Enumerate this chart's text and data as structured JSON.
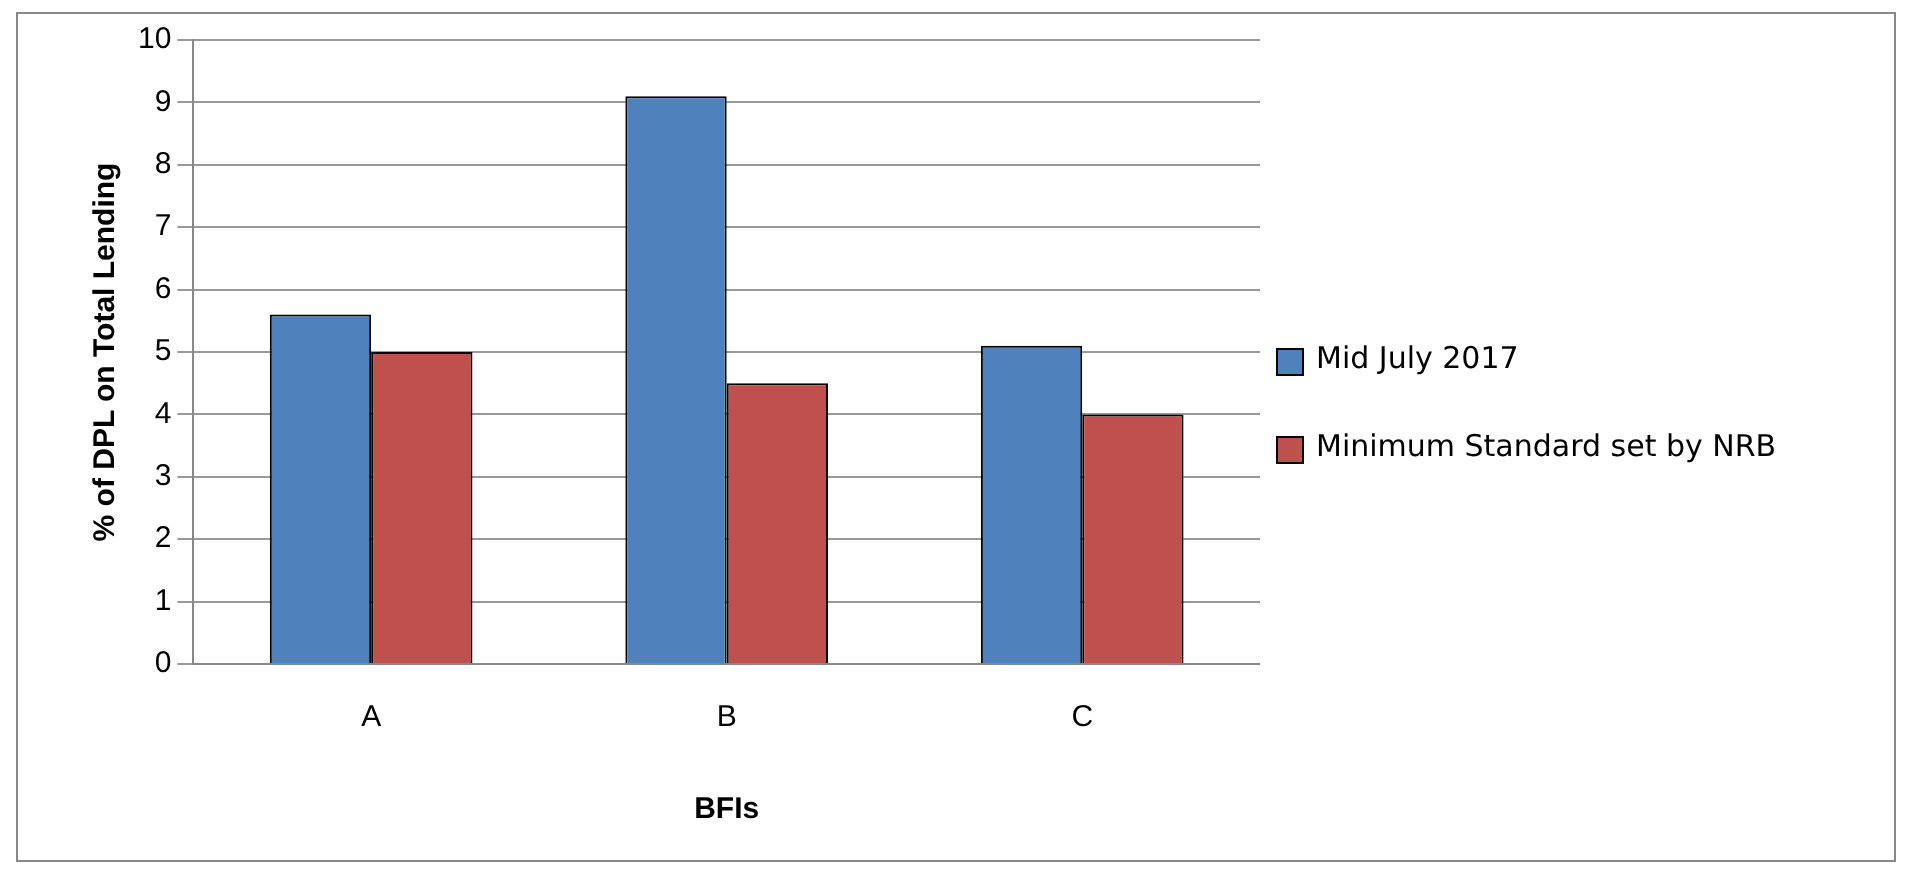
{
  "chart_data": {
    "type": "bar",
    "xlabel": "BFIs",
    "ylabel": "% of DPL on Total Lending",
    "categories": [
      "A",
      "B",
      "C"
    ],
    "series": [
      {
        "name": "Mid July 2017",
        "color": "#4f81bd",
        "values": [
          5.6,
          9.1,
          5.1
        ]
      },
      {
        "name": "Minimum Standard set by NRB",
        "color": "#c0504d",
        "values": [
          5,
          4.5,
          4
        ]
      }
    ],
    "ylim": [
      0,
      10
    ],
    "yticks": [
      0,
      1,
      2,
      3,
      4,
      5,
      6,
      7,
      8,
      9,
      10
    ],
    "grid": "y",
    "legend": "right"
  }
}
